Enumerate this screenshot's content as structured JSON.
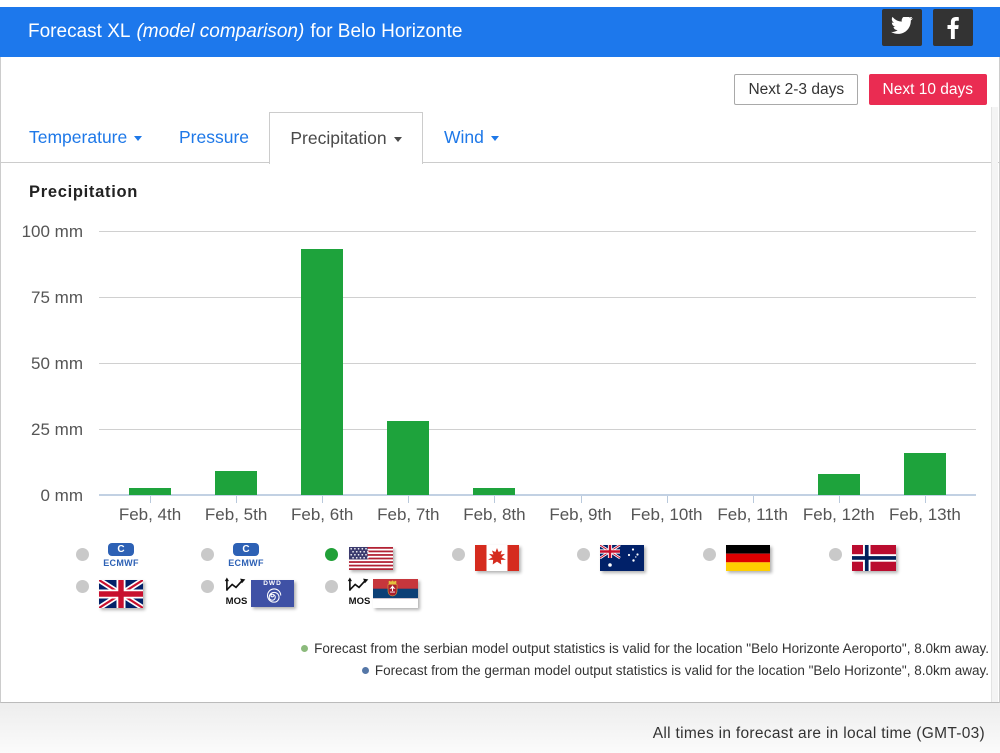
{
  "header": {
    "bg_color": "#1d78ec",
    "title_main": "Forecast XL",
    "title_italic": "(model comparison)",
    "title_suffix": "for Belo Horizonte",
    "social": [
      {
        "icon": "twitter-icon"
      },
      {
        "icon": "facebook-icon"
      }
    ]
  },
  "range_buttons": [
    {
      "label": "Next 2-3 days",
      "active": false
    },
    {
      "label": "Next 10 days",
      "active": true,
      "bg_color": "#ea2c52"
    }
  ],
  "tabs": [
    {
      "label": "Temperature",
      "caret": true,
      "active": false
    },
    {
      "label": "Pressure",
      "caret": false,
      "active": false
    },
    {
      "label": "Precipitation",
      "caret": true,
      "active": true
    },
    {
      "label": "Wind",
      "caret": true,
      "active": false
    }
  ],
  "chart_data": {
    "type": "bar",
    "title": "Precipitation",
    "unit": "mm",
    "categories": [
      "Feb, 4th",
      "Feb, 5th",
      "Feb, 6th",
      "Feb, 7th",
      "Feb, 8th",
      "Feb, 9th",
      "Feb, 10th",
      "Feb, 11th",
      "Feb, 12th",
      "Feb, 13th"
    ],
    "values": [
      2.5,
      9,
      93,
      28,
      2.5,
      0,
      0,
      0,
      8,
      16
    ],
    "ylim": [
      0,
      100
    ],
    "y_ticks": [
      {
        "value": 100,
        "label": "100 mm"
      },
      {
        "value": 75,
        "label": "75 mm"
      },
      {
        "value": 50,
        "label": "50 mm"
      },
      {
        "value": 25,
        "label": "25 mm"
      },
      {
        "value": 0,
        "label": "0 mm"
      }
    ],
    "grid": true,
    "bar_color": "#1ea33c",
    "xlabel": "",
    "ylabel": ""
  },
  "models": {
    "selected_color": "#21a038",
    "unselected_color": "#c9c9c9",
    "options": [
      {
        "id": "ecmwf-1",
        "kind": "logo",
        "logo": "ecmwf-logo",
        "label": "ECMWF",
        "selected": false
      },
      {
        "id": "ecmwf-2",
        "kind": "logo",
        "logo": "ecmwf-logo",
        "label": "ECMWF",
        "selected": false
      },
      {
        "id": "usa",
        "kind": "flag",
        "flag": "usa-flag",
        "selected": true
      },
      {
        "id": "canada",
        "kind": "flag",
        "flag": "canada-flag",
        "selected": false
      },
      {
        "id": "australia",
        "kind": "flag",
        "flag": "australia-flag",
        "selected": false
      },
      {
        "id": "germany",
        "kind": "flag",
        "flag": "germany-flag",
        "selected": false
      },
      {
        "id": "norway",
        "kind": "flag",
        "flag": "norway-flag",
        "selected": false
      },
      {
        "id": "uk",
        "kind": "flag",
        "flag": "uk-flag",
        "selected": false
      },
      {
        "id": "mos-dwd",
        "kind": "mos-logo",
        "mos_label": "MOS",
        "logo": "dwd-logo",
        "logo_label": "DWD",
        "selected": false
      },
      {
        "id": "mos-serbia",
        "kind": "mos-flag",
        "mos_label": "MOS",
        "flag": "serbia-flag",
        "selected": false
      }
    ]
  },
  "legend": [
    {
      "bullet_color": "#8cba7c",
      "text": "Forecast from the serbian model output statistics is valid for the location \"Belo Horizonte Aeroporto\", 8.0km away."
    },
    {
      "bullet_color": "#5577a7",
      "text": "Forecast from the german model output statistics is valid for the location \"Belo Horizonte\", 8.0km away."
    }
  ],
  "footer": {
    "text": "All times in forecast are in local time (GMT-03)"
  }
}
